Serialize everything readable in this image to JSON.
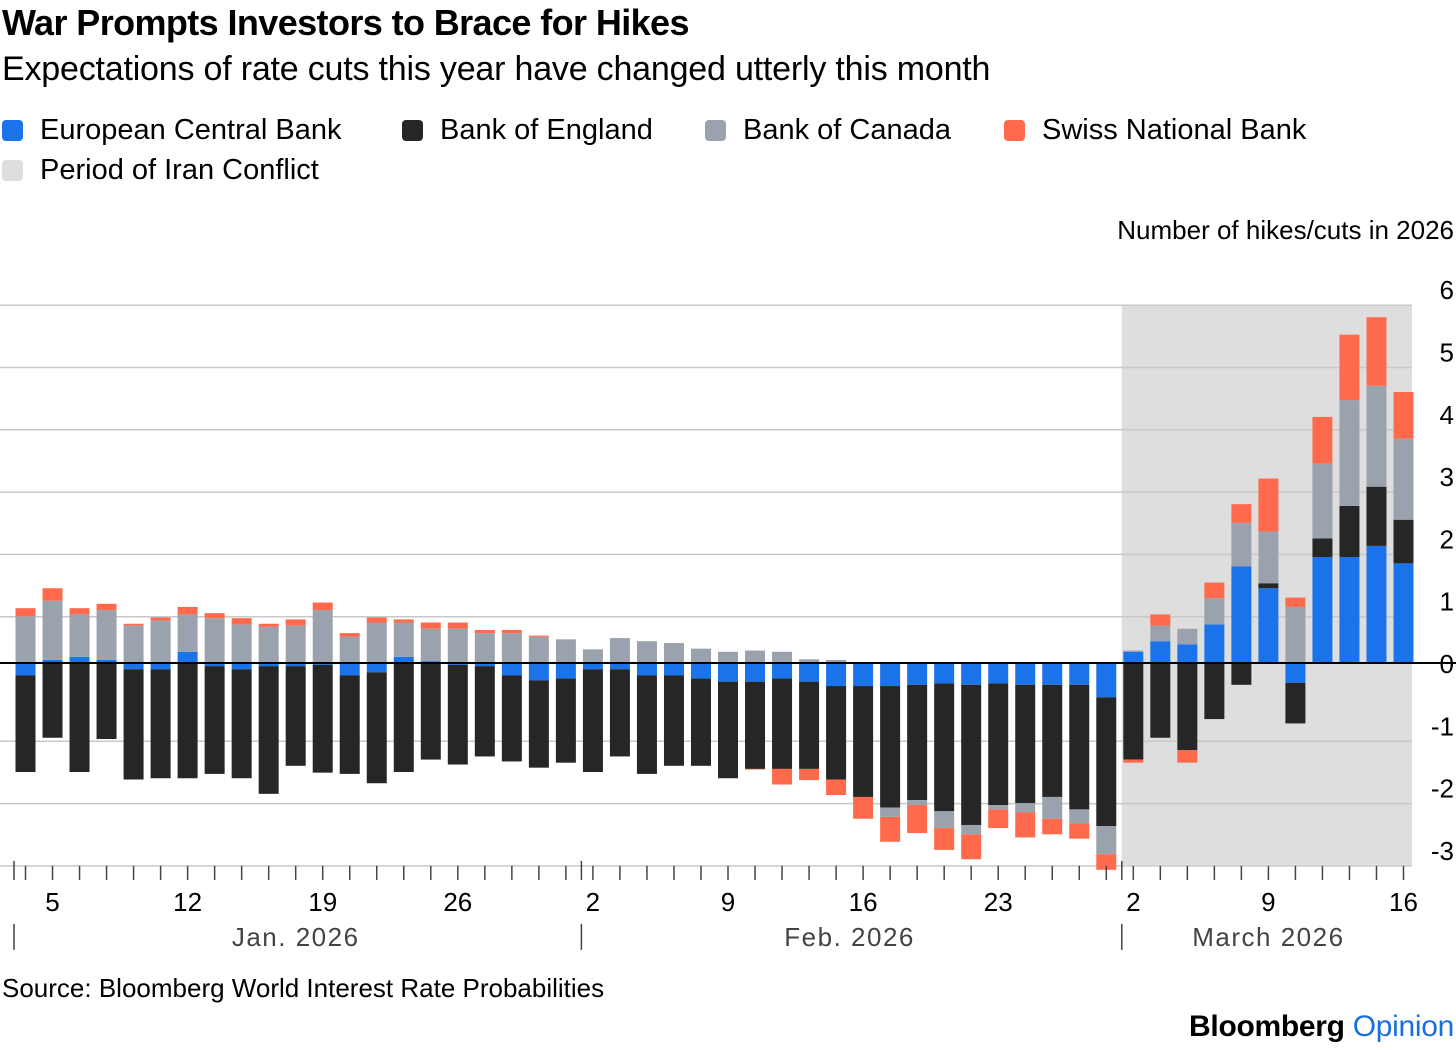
{
  "title": "War Prompts Investors to Brace for Hikes",
  "subtitle": "Expectations of rate cuts this year have changed utterly this month",
  "legend": [
    {
      "label": "European Central Bank",
      "color": "#1a73e8"
    },
    {
      "label": "Bank of England",
      "color": "#262626"
    },
    {
      "label": "Bank of Canada",
      "color": "#9aa3ad"
    },
    {
      "label": "Swiss National Bank",
      "color": "#ff6a4d"
    },
    {
      "label": "Period of Iran Conflict",
      "color": "#dedede"
    }
  ],
  "source": "Source: Bloomberg World Interest Rate Probabilities",
  "brand": {
    "name": "Bloomberg",
    "suffix": "Opinion"
  },
  "chart_data": {
    "type": "bar",
    "stacked": true,
    "ylabel": "Number of hikes/cuts in 2026",
    "ylim": [
      -3,
      6
    ],
    "yticks": [
      6,
      5,
      4,
      3,
      2,
      1,
      0,
      -1,
      -2,
      -3
    ],
    "ytick_labels": [
      "6",
      "5",
      "4",
      "3",
      "2",
      "1",
      "0",
      "-1",
      "-2",
      "-3"
    ],
    "grid": true,
    "y_axis_side": "right",
    "categories": [
      "Jan 2",
      "Jan 5",
      "Jan 6",
      "Jan 7",
      "Jan 8",
      "Jan 9",
      "Jan 12",
      "Jan 13",
      "Jan 14",
      "Jan 15",
      "Jan 16",
      "Jan 19",
      "Jan 20",
      "Jan 21",
      "Jan 22",
      "Jan 23",
      "Jan 26",
      "Jan 27",
      "Jan 28",
      "Jan 29",
      "Jan 30",
      "Feb 2",
      "Feb 3",
      "Feb 4",
      "Feb 5",
      "Feb 6",
      "Feb 9",
      "Feb 10",
      "Feb 11",
      "Feb 12",
      "Feb 13",
      "Feb 16",
      "Feb 17",
      "Feb 18",
      "Feb 19",
      "Feb 20",
      "Feb 23",
      "Feb 24",
      "Feb 25",
      "Feb 26",
      "Feb 27",
      "Mar 2",
      "Mar 3",
      "Mar 4",
      "Mar 5",
      "Mar 6",
      "Mar 9",
      "Mar 10",
      "Mar 11",
      "Mar 12",
      "Mar 13",
      "Mar 16"
    ],
    "x_tick_labels": [
      {
        "index": 1,
        "label": "5"
      },
      {
        "index": 6,
        "label": "12"
      },
      {
        "index": 11,
        "label": "19"
      },
      {
        "index": 16,
        "label": "26"
      },
      {
        "index": 21,
        "label": "2"
      },
      {
        "index": 26,
        "label": "9"
      },
      {
        "index": 31,
        "label": "16"
      },
      {
        "index": 36,
        "label": "23"
      },
      {
        "index": 41,
        "label": "2"
      },
      {
        "index": 46,
        "label": "9"
      },
      {
        "index": 51,
        "label": "16"
      }
    ],
    "months": [
      {
        "label": "Jan. 2026",
        "start_index": 0,
        "end_index": 20
      },
      {
        "label": "Feb. 2026",
        "start_index": 21,
        "end_index": 40
      },
      {
        "label": "March 2026",
        "start_index": 41,
        "end_index": 51
      }
    ],
    "shaded_period": {
      "label": "Period of Iran Conflict",
      "start_index": 41,
      "end_index": 51
    },
    "series": [
      {
        "name": "European Central Bank",
        "color": "#1a73e8",
        "values": [
          -0.2,
          0.05,
          0.1,
          0.05,
          -0.1,
          -0.1,
          0.18,
          -0.05,
          -0.1,
          -0.05,
          -0.05,
          -0.03,
          -0.2,
          -0.15,
          0.1,
          0.03,
          -0.03,
          -0.05,
          -0.2,
          -0.28,
          -0.25,
          -0.1,
          -0.1,
          -0.2,
          -0.2,
          -0.25,
          -0.3,
          -0.3,
          -0.25,
          -0.3,
          -0.37,
          -0.37,
          -0.37,
          -0.35,
          -0.33,
          -0.35,
          -0.33,
          -0.35,
          -0.35,
          -0.35,
          -0.55,
          0.18,
          0.35,
          0.3,
          0.62,
          1.55,
          1.2,
          -0.32,
          1.7,
          1.7,
          1.88,
          1.6
        ]
      },
      {
        "name": "Bank of England",
        "color": "#262626",
        "values": [
          -1.55,
          -1.2,
          -1.75,
          -1.22,
          -1.77,
          -1.75,
          -1.85,
          -1.73,
          -1.75,
          -2.05,
          -1.6,
          -1.73,
          -1.58,
          -1.78,
          -1.75,
          -1.55,
          -1.6,
          -1.45,
          -1.38,
          -1.4,
          -1.35,
          -1.65,
          -1.4,
          -1.58,
          -1.45,
          -1.4,
          -1.55,
          -1.4,
          -1.45,
          -1.4,
          -1.5,
          -1.78,
          -1.95,
          -1.85,
          -2.05,
          -2.25,
          -1.95,
          -1.9,
          -1.8,
          -2.0,
          -2.07,
          -1.55,
          -1.2,
          -1.4,
          -0.9,
          -0.35,
          0.08,
          -0.65,
          0.3,
          0.82,
          0.95,
          0.7
        ]
      },
      {
        "name": "Bank of Canada",
        "color": "#9aa3ad",
        "values": [
          0.75,
          0.95,
          0.68,
          0.8,
          0.6,
          0.68,
          0.6,
          0.72,
          0.62,
          0.58,
          0.6,
          0.85,
          0.42,
          0.65,
          0.55,
          0.52,
          0.55,
          0.48,
          0.48,
          0.42,
          0.38,
          0.22,
          0.4,
          0.35,
          0.32,
          0.23,
          0.18,
          0.2,
          0.18,
          0.06,
          0.05,
          0.0,
          -0.15,
          -0.08,
          -0.27,
          -0.15,
          -0.07,
          -0.15,
          -0.35,
          -0.22,
          -0.45,
          0.02,
          0.25,
          0.25,
          0.42,
          0.7,
          0.83,
          0.9,
          1.2,
          1.7,
          1.62,
          1.3
        ]
      },
      {
        "name": "Swiss National Bank",
        "color": "#ff6a4d",
        "values": [
          0.13,
          0.2,
          0.1,
          0.1,
          0.03,
          0.05,
          0.12,
          0.08,
          0.1,
          0.05,
          0.1,
          0.12,
          0.06,
          0.08,
          0.05,
          0.1,
          0.1,
          0.05,
          0.05,
          0.02,
          0.0,
          0.0,
          0.0,
          0.0,
          0.0,
          0.0,
          0.0,
          -0.01,
          -0.25,
          -0.18,
          -0.25,
          -0.35,
          -0.4,
          -0.45,
          -0.35,
          -0.4,
          -0.3,
          -0.4,
          -0.25,
          -0.25,
          -0.25,
          -0.05,
          0.18,
          -0.2,
          0.25,
          0.3,
          0.85,
          0.15,
          0.75,
          1.05,
          1.1,
          0.75
        ]
      }
    ]
  }
}
